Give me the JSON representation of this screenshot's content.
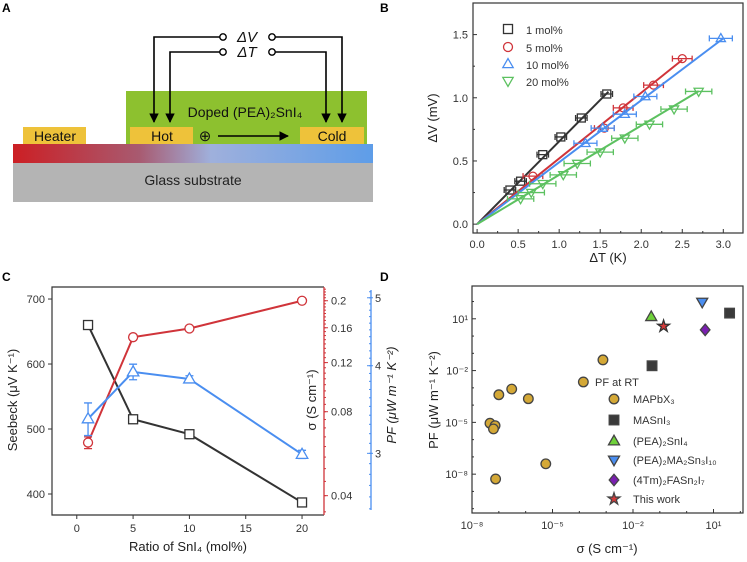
{
  "panel_labels": [
    "A",
    "B",
    "C",
    "D"
  ],
  "schematic": {
    "heater": "Heater",
    "hot": "Hot",
    "cold": "Cold",
    "film": "Doped (PEA)₂SnI₄",
    "substrate": "Glass substrate",
    "delta_v": "ΔV",
    "delta_t": "ΔT",
    "carrier": "⊕",
    "colors": {
      "film": "#8dc12f",
      "electrode": "#eec23a",
      "glass": "#b4b4b4",
      "hot": "#cc1f24",
      "cold": "#5e9de8"
    }
  },
  "chart_data": [
    {
      "type": "line",
      "panel": "B",
      "xlabel": "ΔT (K)",
      "ylabel": "ΔV (mV)",
      "xlim": [
        -0.05,
        3.24
      ],
      "ylim": [
        -0.07,
        1.75
      ],
      "xticks": [
        0,
        0.5,
        1,
        1.5,
        2,
        2.5,
        3
      ],
      "xtick_labels": [
        "0.0",
        "0.5",
        "1.0",
        "1.5",
        "2.0",
        "2.5",
        "3.0"
      ],
      "yticks": [
        0,
        0.5,
        1,
        1.5
      ],
      "ytick_labels": [
        "0.0",
        "0.5",
        "1.0",
        "1.5"
      ],
      "legend_placement": "top-left",
      "series": [
        {
          "name": "1 mol%",
          "color": "#333333",
          "marker": "square",
          "xerr": 0.07,
          "fit_slope": 0.655,
          "fit_end": 1.6,
          "x": [
            0.4,
            0.53,
            0.8,
            1.02,
            1.27,
            1.58
          ],
          "y": [
            0.27,
            0.34,
            0.55,
            0.69,
            0.84,
            1.03
          ]
        },
        {
          "name": "5 mol%",
          "color": "#d0343a",
          "marker": "circle",
          "xerr": 0.12,
          "fit_slope": 0.52,
          "fit_end": 2.5,
          "x": [
            0.68,
            1.55,
            1.78,
            2.15,
            2.5
          ],
          "y": [
            0.38,
            0.76,
            0.92,
            1.1,
            1.31
          ]
        },
        {
          "name": "10 mol%",
          "color": "#4a8ef0",
          "marker": "up",
          "xerr": 0.14,
          "fit_slope": 0.49,
          "fit_end": 3.0,
          "x": [
            1.32,
            1.53,
            1.8,
            2.05,
            2.97
          ],
          "y": [
            0.64,
            0.76,
            0.87,
            1.01,
            1.47
          ]
        },
        {
          "name": "20 mol%",
          "color": "#5cc160",
          "marker": "down",
          "xerr": 0.16,
          "fit_slope": 0.39,
          "fit_end": 2.7,
          "x": [
            0.53,
            0.66,
            0.8,
            1.05,
            1.22,
            1.5,
            1.8,
            2.1,
            2.4,
            2.7
          ],
          "y": [
            0.2,
            0.25,
            0.32,
            0.39,
            0.48,
            0.57,
            0.68,
            0.79,
            0.91,
            1.05
          ]
        }
      ]
    },
    {
      "type": "line",
      "panel": "C",
      "xlabel": "Ratio of SnI₄ (mol%)",
      "x": [
        1,
        5,
        10,
        20
      ],
      "xlim": [
        -2.2,
        21.95
      ],
      "xticks": [
        0,
        5,
        10,
        15,
        20
      ],
      "xtick_labels": [
        "0",
        "5",
        "10",
        "15",
        "20"
      ],
      "series": [
        {
          "name": "Seebeck",
          "axis_label": "Seebeck (μV K⁻¹)",
          "color": "#333333",
          "marker": "square",
          "scale": "linear",
          "ylim": [
            367.7,
            718.5
          ],
          "yticks": [
            400,
            500,
            600,
            700
          ],
          "ytick_labels": [
            "400",
            "500",
            "600",
            "700"
          ],
          "values": [
            660,
            515,
            492,
            387
          ],
          "yerr": [
            2,
            3,
            4,
            4
          ]
        },
        {
          "name": "σ",
          "axis_label": "σ (S cm⁻¹)",
          "color": "#d0343a",
          "marker": "circle",
          "scale": "log",
          "ylim": [
            0.0341,
            0.224
          ],
          "yticks": [
            0.04,
            0.08,
            0.12,
            0.16,
            0.2
          ],
          "ytick_labels": [
            "0.04",
            "0.08",
            "0.12",
            "0.16",
            "0.2"
          ],
          "values": [
            0.062,
            0.148,
            0.159,
            0.2
          ],
          "yerr": [
            0.003,
            0.003,
            0.003,
            0.003
          ]
        },
        {
          "name": "PF",
          "axis_label": "PF (μW m⁻¹ K⁻²)",
          "color": "#4a8ef0",
          "marker": "up",
          "scale": "log",
          "ylim": [
            2.45,
            5.18
          ],
          "yticks": [
            3,
            4,
            5
          ],
          "ytick_labels": [
            "3",
            "4",
            "5"
          ],
          "values": [
            3.36,
            3.92,
            3.83,
            2.99
          ],
          "yerr": [
            0.18,
            0.1,
            0.04,
            0.04
          ]
        }
      ]
    },
    {
      "type": "scatter",
      "panel": "D",
      "xlabel": "σ (S cm⁻¹)",
      "ylabel": "PF (μW m⁻¹ K⁻²)",
      "scale": "log-log",
      "xlim_log10": [
        -8,
        2.1
      ],
      "ylim_log10": [
        -10.25,
        2.9
      ],
      "xticks_log10": [
        -8,
        -5,
        -2,
        1
      ],
      "xtick_labels": [
        "10⁻⁸",
        "10⁻⁵",
        "10⁻²",
        "10¹"
      ],
      "yticks_log10": [
        -8,
        -5,
        -2,
        1
      ],
      "ytick_labels": [
        "10⁻⁸",
        "10⁻⁵",
        "10⁻²",
        "10¹"
      ],
      "legend_title": "PF at RT",
      "legend_placement": "bottom-right",
      "series": [
        {
          "name": "MAPbX₃",
          "color": "#d4a836",
          "marker": "circle",
          "x_log10": [
            -7.33,
            -7.14,
            -7.2,
            -7.0,
            -6.52,
            -5.9,
            -7.12,
            -5.25,
            -3.85,
            -3.12
          ],
          "y_log10": [
            -5.05,
            -5.19,
            -5.38,
            -3.4,
            -3.07,
            -3.63,
            -8.28,
            -7.4,
            -2.66,
            -1.38
          ]
        },
        {
          "name": "MASnI₃",
          "color": "#3a3a3a",
          "marker": "square",
          "x_log10": [
            -1.29,
            1.6
          ],
          "y_log10": [
            -1.72,
            1.33
          ]
        },
        {
          "name": "(PEA)₂SnI₄",
          "color": "#6fd23a",
          "marker": "up",
          "x_log10": [
            -1.32
          ],
          "y_log10": [
            1.12
          ]
        },
        {
          "name": "(PEA)₂MA₂Sn₃I₁₀",
          "color": "#4a8ef0",
          "marker": "down",
          "x_log10": [
            0.58
          ],
          "y_log10": [
            1.97
          ]
        },
        {
          "name": "(4Tm)₂FASn₂I₇",
          "color": "#7a1fb0",
          "marker": "diamond",
          "x_log10": [
            0.69
          ],
          "y_log10": [
            0.36
          ]
        },
        {
          "name": "This work",
          "color": "#d63a3a",
          "marker": "star",
          "x_log10": [
            -0.86
          ],
          "y_log10": [
            0.57
          ]
        }
      ]
    }
  ]
}
